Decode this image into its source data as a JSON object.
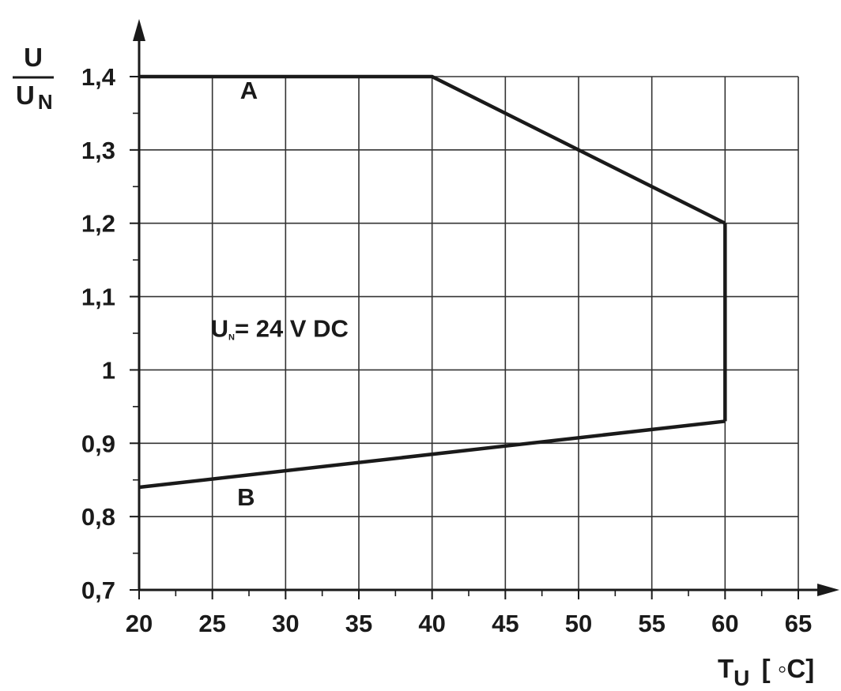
{
  "chart_data": {
    "type": "line",
    "xlabel": {
      "main": "T",
      "sub": "U",
      "unit": "[ ◦C]"
    },
    "ylabel": {
      "numerator": "U",
      "denominator_main": "U",
      "denominator_sub": "N"
    },
    "xlim": [
      20,
      65
    ],
    "ylim": [
      0.7,
      1.4
    ],
    "x_ticks": [
      20,
      25,
      30,
      35,
      40,
      45,
      50,
      55,
      60,
      65
    ],
    "x_tick_labels": [
      "20",
      "25",
      "30",
      "35",
      "40",
      "45",
      "50",
      "55",
      "60",
      "65"
    ],
    "y_ticks": [
      0.7,
      0.8,
      0.9,
      1.0,
      1.1,
      1.2,
      1.3,
      1.4
    ],
    "y_tick_labels": [
      "0,7",
      "0,8",
      "0,9",
      "1",
      "1,1",
      "1,2",
      "1,3",
      "1,4"
    ],
    "grid": true,
    "series": [
      {
        "name": "A",
        "x": [
          20,
          40,
          60
        ],
        "y": [
          1.4,
          1.4,
          1.2
        ]
      },
      {
        "name": "B",
        "x": [
          20,
          60
        ],
        "y": [
          0.84,
          0.93
        ]
      }
    ],
    "boundary": {
      "x": [
        60,
        60
      ],
      "y": [
        1.2,
        0.93
      ]
    },
    "annotations": [
      {
        "name": "label-a",
        "text": "A",
        "x": 27.5,
        "y": 1.37
      },
      {
        "name": "label-b",
        "text": "B",
        "x": 27.3,
        "y": 0.815
      }
    ],
    "condition": {
      "main": "U",
      "sub": "N",
      "rest": "= 24 V DC",
      "x": 25,
      "y": 1.045
    },
    "colors": {
      "line": "#1a1a1a",
      "grid": "#333333",
      "axis": "#1a1a1a"
    }
  }
}
